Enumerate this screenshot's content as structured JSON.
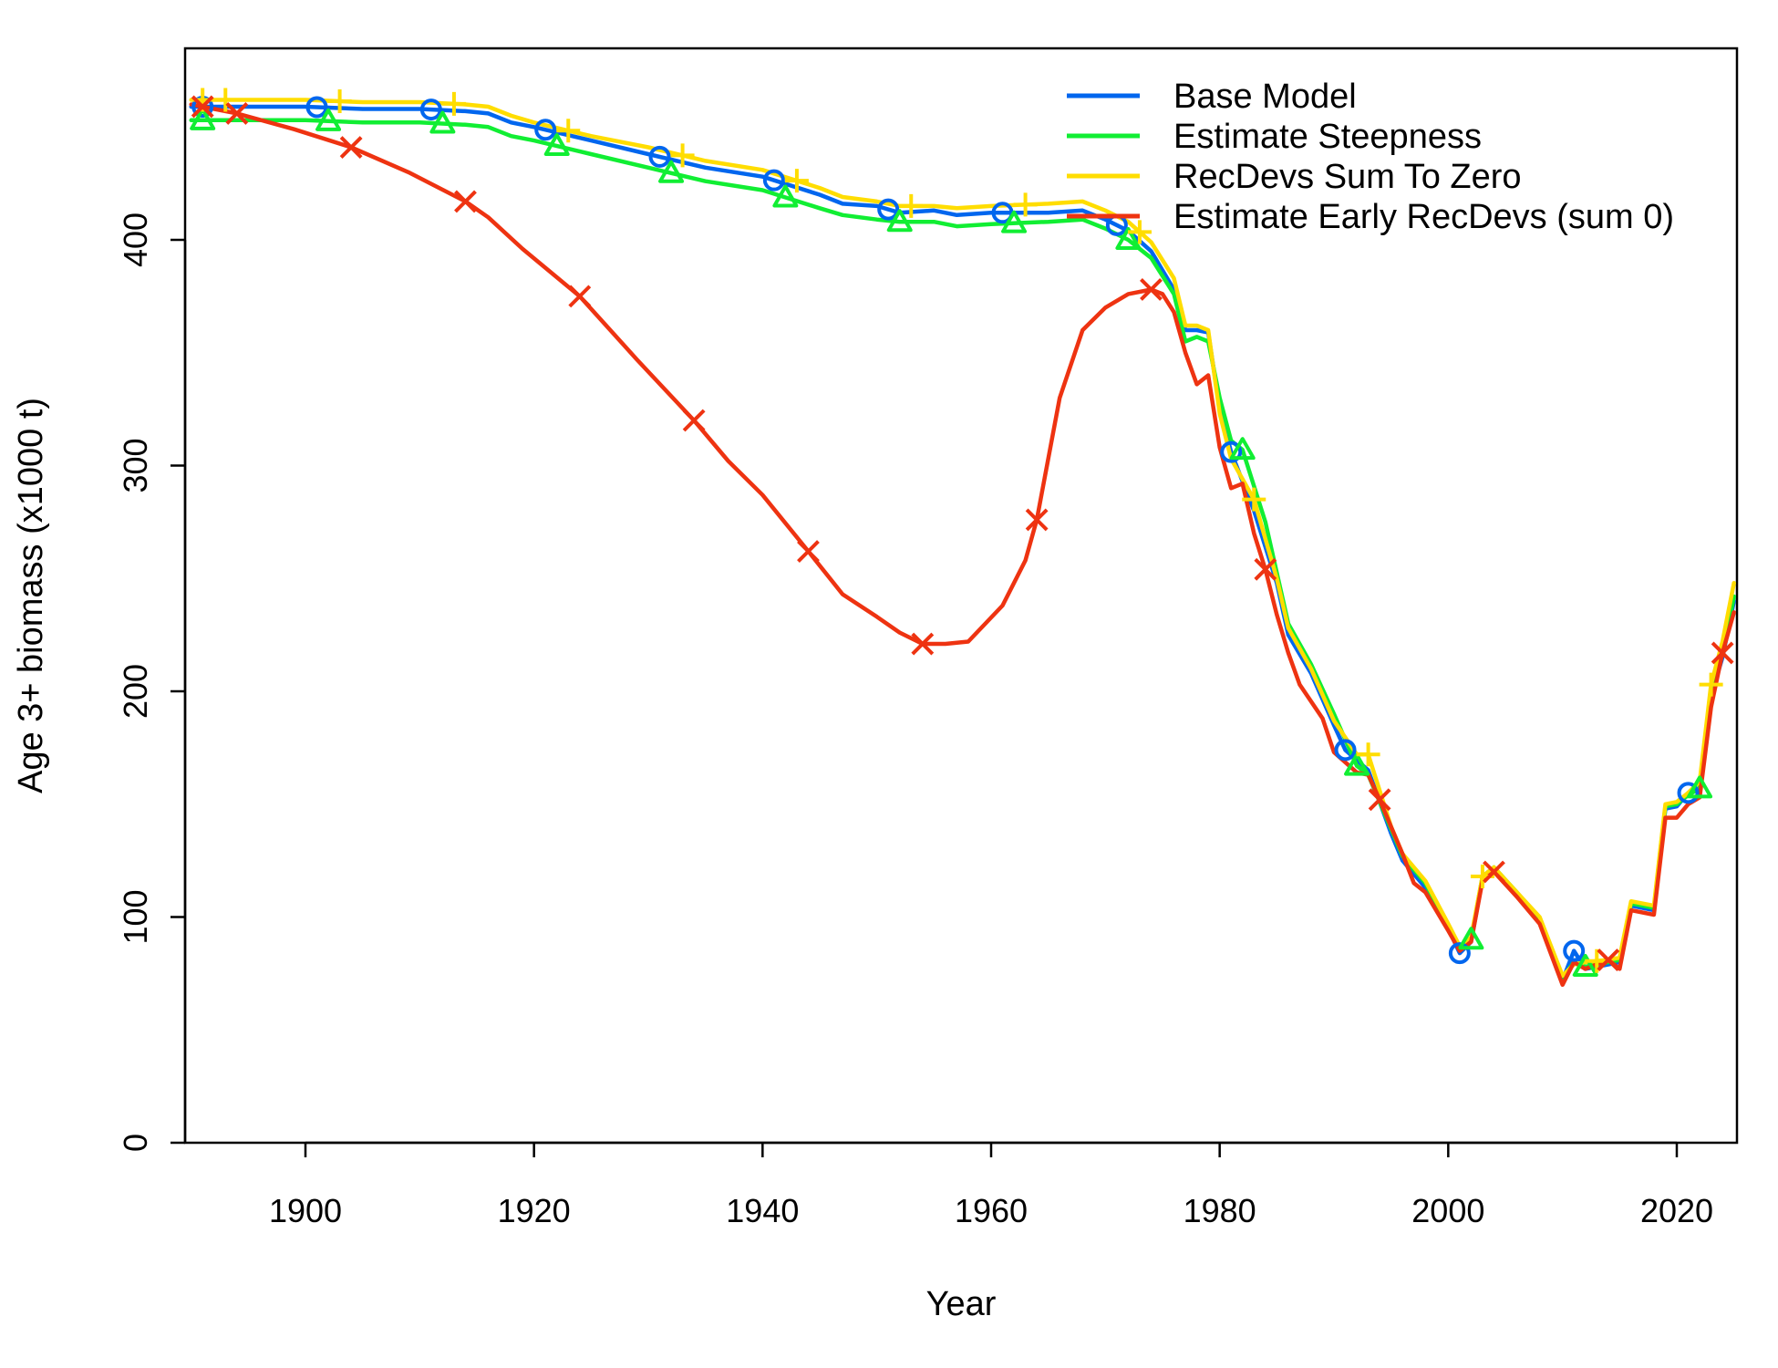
{
  "chart_data": {
    "type": "line",
    "xlabel": "Year",
    "ylabel": "Age 3+ biomass (x1000 t)",
    "xlim": [
      1890,
      2025
    ],
    "ylim": [
      0,
      480
    ],
    "x_ticks": [
      1900,
      1920,
      1940,
      1960,
      1980,
      2000,
      2020
    ],
    "y_ticks": [
      0,
      100,
      200,
      300,
      400
    ],
    "grid": false,
    "legend_position": "top-right",
    "series": [
      {
        "name": "Base Model",
        "color": "#0066ee",
        "marker": "circle",
        "points": [
          [
            1890,
            459
          ],
          [
            1895,
            459
          ],
          [
            1900,
            459
          ],
          [
            1905,
            458
          ],
          [
            1910,
            458
          ],
          [
            1914,
            457
          ],
          [
            1916,
            456
          ],
          [
            1918,
            452
          ],
          [
            1920,
            450
          ],
          [
            1925,
            444
          ],
          [
            1930,
            438
          ],
          [
            1935,
            432
          ],
          [
            1940,
            428
          ],
          [
            1945,
            420
          ],
          [
            1947,
            416
          ],
          [
            1950,
            415
          ],
          [
            1952,
            412
          ],
          [
            1955,
            413
          ],
          [
            1957,
            411
          ],
          [
            1960,
            412
          ],
          [
            1965,
            412
          ],
          [
            1968,
            413
          ],
          [
            1970,
            409
          ],
          [
            1972,
            404
          ],
          [
            1974,
            395
          ],
          [
            1976,
            378
          ],
          [
            1977,
            360
          ],
          [
            1978,
            360
          ],
          [
            1979,
            359
          ],
          [
            1980,
            325
          ],
          [
            1981,
            306
          ],
          [
            1983,
            280
          ],
          [
            1985,
            248
          ],
          [
            1986,
            225
          ],
          [
            1988,
            208
          ],
          [
            1990,
            185
          ],
          [
            1991,
            174
          ],
          [
            1993,
            165
          ],
          [
            1995,
            137
          ],
          [
            1996,
            125
          ],
          [
            1998,
            113
          ],
          [
            2000,
            95
          ],
          [
            2001,
            84
          ],
          [
            2002,
            89
          ],
          [
            2003,
            117
          ],
          [
            2004,
            121
          ],
          [
            2006,
            110
          ],
          [
            2008,
            98
          ],
          [
            2010,
            72
          ],
          [
            2011,
            85
          ],
          [
            2012,
            77
          ],
          [
            2014,
            79
          ],
          [
            2015,
            80
          ],
          [
            2016,
            105
          ],
          [
            2018,
            103
          ],
          [
            2019,
            148
          ],
          [
            2020,
            149
          ],
          [
            2021,
            155
          ],
          [
            2022,
            157
          ],
          [
            2023,
            198
          ],
          [
            2024,
            215
          ],
          [
            2025,
            240
          ]
        ],
        "marker_x": [
          1891,
          1901,
          1911,
          1921,
          1931,
          1941,
          1951,
          1961,
          1971,
          1981,
          1991,
          2001,
          2011,
          2021
        ]
      },
      {
        "name": "Estimate Steepness",
        "color": "#11ee33",
        "marker": "triangle",
        "points": [
          [
            1890,
            453
          ],
          [
            1895,
            453
          ],
          [
            1900,
            453
          ],
          [
            1905,
            452
          ],
          [
            1910,
            452
          ],
          [
            1914,
            451
          ],
          [
            1916,
            450
          ],
          [
            1918,
            446
          ],
          [
            1920,
            444
          ],
          [
            1925,
            438
          ],
          [
            1930,
            432
          ],
          [
            1935,
            426
          ],
          [
            1940,
            422
          ],
          [
            1945,
            414
          ],
          [
            1947,
            411
          ],
          [
            1950,
            409
          ],
          [
            1952,
            408
          ],
          [
            1955,
            408
          ],
          [
            1957,
            406
          ],
          [
            1960,
            407
          ],
          [
            1965,
            408
          ],
          [
            1968,
            409
          ],
          [
            1970,
            405
          ],
          [
            1972,
            400
          ],
          [
            1974,
            392
          ],
          [
            1976,
            376
          ],
          [
            1977,
            355
          ],
          [
            1978,
            357
          ],
          [
            1979,
            355
          ],
          [
            1980,
            330
          ],
          [
            1981,
            311
          ],
          [
            1982,
            307
          ],
          [
            1984,
            275
          ],
          [
            1986,
            230
          ],
          [
            1988,
            212
          ],
          [
            1990,
            190
          ],
          [
            1992,
            167
          ],
          [
            1993,
            163
          ],
          [
            1995,
            139
          ],
          [
            1996,
            127
          ],
          [
            1998,
            115
          ],
          [
            2000,
            96
          ],
          [
            2001,
            86
          ],
          [
            2002,
            90
          ],
          [
            2003,
            118
          ],
          [
            2004,
            122
          ],
          [
            2006,
            111
          ],
          [
            2008,
            99
          ],
          [
            2010,
            73
          ],
          [
            2011,
            80
          ],
          [
            2012,
            78
          ],
          [
            2014,
            80
          ],
          [
            2015,
            81
          ],
          [
            2016,
            106
          ],
          [
            2018,
            104
          ],
          [
            2019,
            149
          ],
          [
            2020,
            150
          ],
          [
            2021,
            154
          ],
          [
            2022,
            157
          ],
          [
            2023,
            200
          ],
          [
            2024,
            217
          ],
          [
            2025,
            242
          ]
        ],
        "marker_x": [
          1891,
          1902,
          1912,
          1922,
          1932,
          1942,
          1952,
          1962,
          1972,
          1982,
          1992,
          2002,
          2012,
          2022
        ]
      },
      {
        "name": "RecDevs Sum To Zero",
        "color": "#ffdd00",
        "marker": "plus",
        "points": [
          [
            1890,
            462
          ],
          [
            1895,
            462
          ],
          [
            1900,
            462
          ],
          [
            1905,
            461
          ],
          [
            1910,
            461
          ],
          [
            1914,
            460
          ],
          [
            1916,
            459
          ],
          [
            1918,
            455
          ],
          [
            1920,
            452
          ],
          [
            1925,
            446
          ],
          [
            1930,
            441
          ],
          [
            1935,
            435
          ],
          [
            1940,
            431
          ],
          [
            1945,
            423
          ],
          [
            1947,
            419
          ],
          [
            1950,
            417
          ],
          [
            1952,
            415
          ],
          [
            1955,
            415
          ],
          [
            1957,
            414
          ],
          [
            1960,
            415
          ],
          [
            1965,
            416
          ],
          [
            1968,
            417
          ],
          [
            1970,
            413
          ],
          [
            1972,
            408
          ],
          [
            1974,
            399
          ],
          [
            1976,
            383
          ],
          [
            1977,
            362
          ],
          [
            1978,
            362
          ],
          [
            1979,
            360
          ],
          [
            1980,
            323
          ],
          [
            1981,
            303
          ],
          [
            1983,
            285
          ],
          [
            1985,
            250
          ],
          [
            1986,
            228
          ],
          [
            1988,
            210
          ],
          [
            1990,
            187
          ],
          [
            1992,
            172
          ],
          [
            1993,
            172
          ],
          [
            1995,
            140
          ],
          [
            1996,
            128
          ],
          [
            1998,
            116
          ],
          [
            2000,
            97
          ],
          [
            2001,
            87
          ],
          [
            2002,
            91
          ],
          [
            2003,
            118
          ],
          [
            2004,
            122
          ],
          [
            2006,
            111
          ],
          [
            2008,
            100
          ],
          [
            2010,
            74
          ],
          [
            2011,
            79
          ],
          [
            2012,
            80
          ],
          [
            2014,
            81
          ],
          [
            2015,
            82
          ],
          [
            2016,
            107
          ],
          [
            2018,
            105
          ],
          [
            2019,
            150
          ],
          [
            2020,
            151
          ],
          [
            2021,
            155
          ],
          [
            2022,
            160
          ],
          [
            2023,
            203
          ],
          [
            2024,
            222
          ],
          [
            2025,
            248
          ]
        ],
        "marker_x": [
          1891,
          1893,
          1903,
          1913,
          1923,
          1933,
          1943,
          1953,
          1963,
          1973,
          1983,
          1993,
          2003,
          2013,
          2023
        ]
      },
      {
        "name": "Estimate Early RecDevs (sum 0)",
        "color": "#ee3311",
        "marker": "cross",
        "points": [
          [
            1890,
            460
          ],
          [
            1894,
            456
          ],
          [
            1899,
            449
          ],
          [
            1904,
            441
          ],
          [
            1909,
            430
          ],
          [
            1914,
            417
          ],
          [
            1916,
            410
          ],
          [
            1919,
            396
          ],
          [
            1924,
            375
          ],
          [
            1929,
            347
          ],
          [
            1934,
            320
          ],
          [
            1937,
            302
          ],
          [
            1940,
            287
          ],
          [
            1944,
            262
          ],
          [
            1947,
            243
          ],
          [
            1950,
            233
          ],
          [
            1952,
            226
          ],
          [
            1954,
            221
          ],
          [
            1956,
            221
          ],
          [
            1958,
            222
          ],
          [
            1961,
            238
          ],
          [
            1963,
            258
          ],
          [
            1964,
            276
          ],
          [
            1966,
            330
          ],
          [
            1968,
            360
          ],
          [
            1970,
            370
          ],
          [
            1972,
            376
          ],
          [
            1974,
            378
          ],
          [
            1975,
            376
          ],
          [
            1976,
            368
          ],
          [
            1977,
            350
          ],
          [
            1978,
            336
          ],
          [
            1979,
            340
          ],
          [
            1980,
            308
          ],
          [
            1981,
            290
          ],
          [
            1982,
            292
          ],
          [
            1983,
            270
          ],
          [
            1984,
            254
          ],
          [
            1985,
            234
          ],
          [
            1986,
            217
          ],
          [
            1987,
            203
          ],
          [
            1989,
            188
          ],
          [
            1990,
            173
          ],
          [
            1992,
            164
          ],
          [
            1993,
            163
          ],
          [
            1994,
            152
          ],
          [
            1996,
            128
          ],
          [
            1997,
            115
          ],
          [
            1998,
            111
          ],
          [
            2000,
            94
          ],
          [
            2001,
            85
          ],
          [
            2002,
            89
          ],
          [
            2003,
            116
          ],
          [
            2004,
            120
          ],
          [
            2006,
            109
          ],
          [
            2008,
            97
          ],
          [
            2010,
            70
          ],
          [
            2011,
            80
          ],
          [
            2012,
            77
          ],
          [
            2014,
            81
          ],
          [
            2015,
            77
          ],
          [
            2016,
            103
          ],
          [
            2018,
            101
          ],
          [
            2019,
            144
          ],
          [
            2020,
            144
          ],
          [
            2021,
            150
          ],
          [
            2022,
            153
          ],
          [
            2023,
            193
          ],
          [
            2024,
            217
          ],
          [
            2025,
            235
          ]
        ],
        "marker_x": [
          1891,
          1894,
          1904,
          1914,
          1924,
          1934,
          1944,
          1954,
          1964,
          1974,
          1984,
          1994,
          2004,
          2014,
          2024
        ]
      }
    ]
  }
}
